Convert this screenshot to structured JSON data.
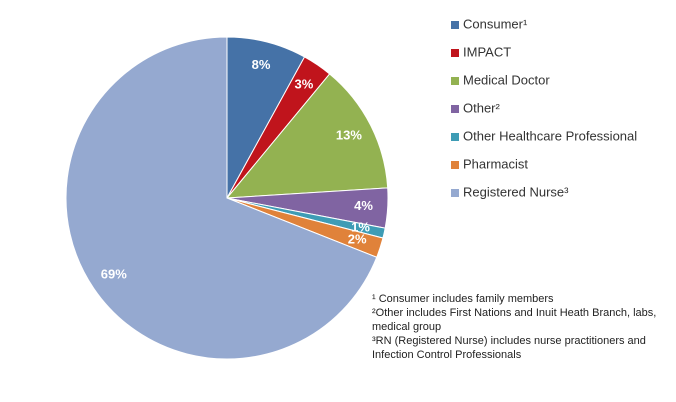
{
  "chart_data": {
    "type": "pie",
    "categories": [
      "Consumer¹",
      "IMPACT",
      "Medical Doctor",
      "Other²",
      "Other Healthcare Professional",
      "Pharmacist",
      "Registered Nurse³"
    ],
    "values": [
      8,
      3,
      13,
      4,
      1,
      2,
      69
    ],
    "value_labels": [
      "8%",
      "3%",
      "13%",
      "4%",
      "1%",
      "2%",
      "69%"
    ],
    "colors": [
      "#4572a7",
      "#c0141c",
      "#93b251",
      "#8064a2",
      "#3e9cb5",
      "#e0823a",
      "#95a9d0"
    ],
    "legend": "right",
    "footnotes": [
      "¹ Consumer includes family members",
      "²Other includes First Nations and Inuit Heath Branch, labs, medical group",
      "³RN (Registered Nurse) includes nurse practitioners and Infection Control Professionals"
    ]
  }
}
